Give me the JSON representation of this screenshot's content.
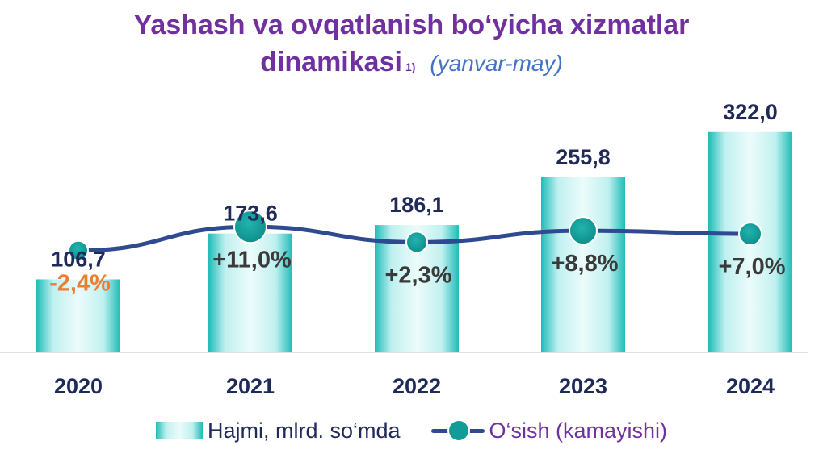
{
  "chart_data": {
    "type": "bar",
    "title": "Yashash va ovqatlanish bo‘yicha xizmatlar dinamikasi",
    "title_line1": "Yashash va ovqatlanish bo‘yicha xizmatlar",
    "title_line2": "dinamikasi",
    "title_footnote": "1)",
    "subtitle": "(yanvar-may)",
    "categories": [
      "2020",
      "2021",
      "2022",
      "2023",
      "2024"
    ],
    "series": [
      {
        "name": "Hajmi, mlrd. so‘mda",
        "type": "bar",
        "values": [
          106.7,
          173.6,
          186.1,
          255.8,
          322.0
        ],
        "labels": [
          "106,7",
          "173,6",
          "186,1",
          "255,8",
          "322,0"
        ],
        "color": "#1fbcb8"
      },
      {
        "name": "O‘sish (kamayishi)",
        "type": "line",
        "values": [
          -2.4,
          11.0,
          2.3,
          8.8,
          7.0
        ],
        "labels": [
          "-2,4%",
          "+11,0%",
          "+2,3%",
          "+8,8%",
          "+7,0%"
        ],
        "color": "#2f4a91",
        "marker_color": "#119c98"
      }
    ],
    "bar_ylim": [
      0,
      350
    ],
    "line_ylim": [
      -60,
      80
    ],
    "negative_label_color": "#ed7d31",
    "legend_position": "bottom",
    "grid": false
  }
}
